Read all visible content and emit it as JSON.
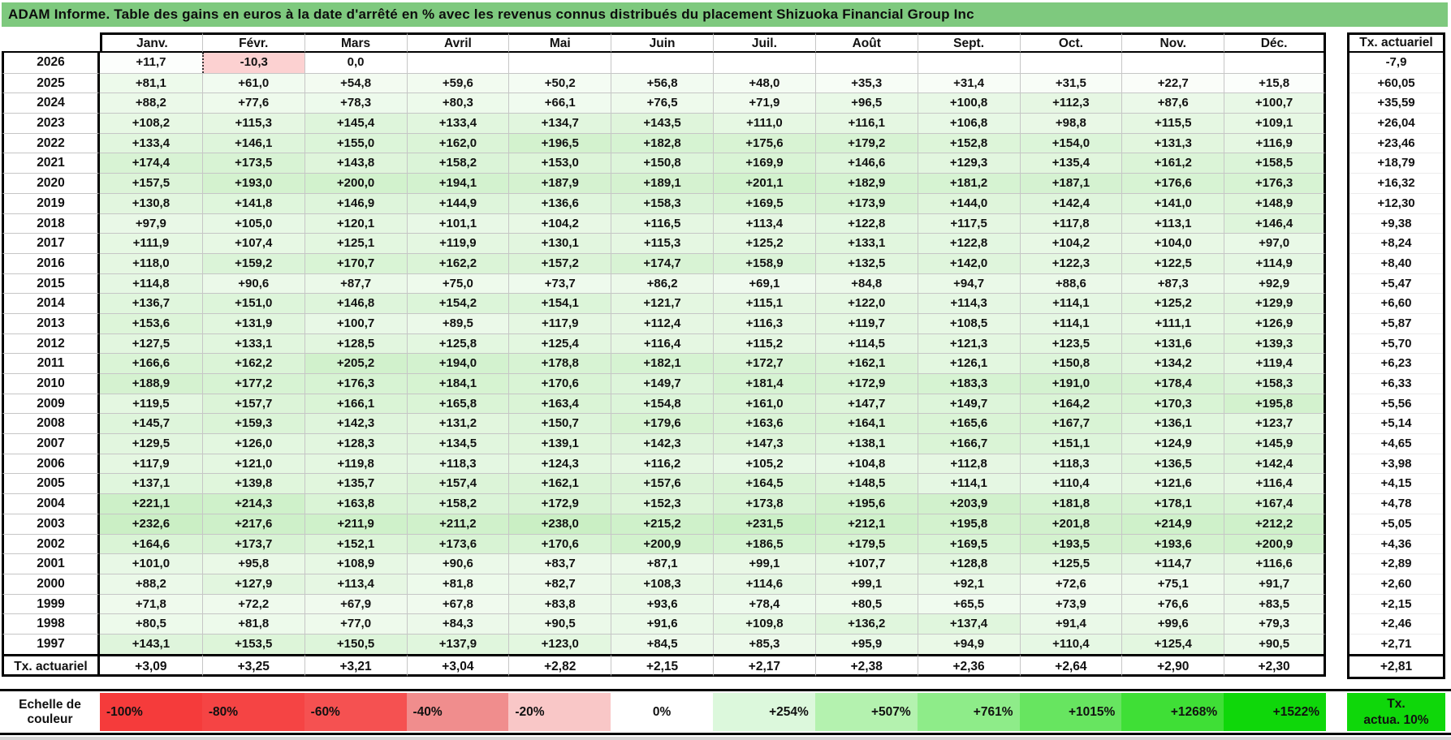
{
  "title": "ADAM Informe. Table des gains en euros à la date d'arrêté en % avec les revenus connus distribués du placement Shizuoka Financial Group Inc",
  "table": {
    "month_headers": [
      "Janv.",
      "Févr.",
      "Mars",
      "Avril",
      "Mai",
      "Juin",
      "Juil.",
      "Août",
      "Sept.",
      "Oct.",
      "Nov.",
      "Déc."
    ],
    "tx_header": "Tx. actuariel",
    "rows": [
      {
        "year": "2026",
        "values": [
          "+11,7",
          "-10,3",
          "0,0",
          "",
          "",
          "",
          "",
          "",
          "",
          "",
          "",
          ""
        ],
        "tx": "-7,9"
      },
      {
        "year": "2025",
        "values": [
          "+81,1",
          "+61,0",
          "+54,8",
          "+59,6",
          "+50,2",
          "+56,8",
          "+48,0",
          "+35,3",
          "+31,4",
          "+31,5",
          "+22,7",
          "+15,8"
        ],
        "tx": "+60,05"
      },
      {
        "year": "2024",
        "values": [
          "+88,2",
          "+77,6",
          "+78,3",
          "+80,3",
          "+66,1",
          "+76,5",
          "+71,9",
          "+96,5",
          "+100,8",
          "+112,3",
          "+87,6",
          "+100,7"
        ],
        "tx": "+35,59"
      },
      {
        "year": "2023",
        "values": [
          "+108,2",
          "+115,3",
          "+145,4",
          "+133,4",
          "+134,7",
          "+143,5",
          "+111,0",
          "+116,1",
          "+106,8",
          "+98,8",
          "+115,5",
          "+109,1"
        ],
        "tx": "+26,04"
      },
      {
        "year": "2022",
        "values": [
          "+133,4",
          "+146,1",
          "+155,0",
          "+162,0",
          "+196,5",
          "+182,8",
          "+175,6",
          "+179,2",
          "+152,8",
          "+154,0",
          "+131,3",
          "+116,9"
        ],
        "tx": "+23,46"
      },
      {
        "year": "2021",
        "values": [
          "+174,4",
          "+173,5",
          "+143,8",
          "+158,2",
          "+153,0",
          "+150,8",
          "+169,9",
          "+146,6",
          "+129,3",
          "+135,4",
          "+161,2",
          "+158,5"
        ],
        "tx": "+18,79"
      },
      {
        "year": "2020",
        "values": [
          "+157,5",
          "+193,0",
          "+200,0",
          "+194,1",
          "+187,9",
          "+189,1",
          "+201,1",
          "+182,9",
          "+181,2",
          "+187,1",
          "+176,6",
          "+176,3"
        ],
        "tx": "+16,32"
      },
      {
        "year": "2019",
        "values": [
          "+130,8",
          "+141,8",
          "+146,9",
          "+144,9",
          "+136,6",
          "+158,3",
          "+169,5",
          "+173,9",
          "+144,0",
          "+142,4",
          "+141,0",
          "+148,9"
        ],
        "tx": "+12,30"
      },
      {
        "year": "2018",
        "values": [
          "+97,9",
          "+105,0",
          "+120,1",
          "+101,1",
          "+104,2",
          "+116,5",
          "+113,4",
          "+122,8",
          "+117,5",
          "+117,8",
          "+113,1",
          "+146,4"
        ],
        "tx": "+9,38"
      },
      {
        "year": "2017",
        "values": [
          "+111,9",
          "+107,4",
          "+125,1",
          "+119,9",
          "+130,1",
          "+115,3",
          "+125,2",
          "+133,1",
          "+122,8",
          "+104,2",
          "+104,0",
          "+97,0"
        ],
        "tx": "+8,24"
      },
      {
        "year": "2016",
        "values": [
          "+118,0",
          "+159,2",
          "+170,7",
          "+162,2",
          "+157,2",
          "+174,7",
          "+158,9",
          "+132,5",
          "+142,0",
          "+122,3",
          "+122,5",
          "+114,9"
        ],
        "tx": "+8,40"
      },
      {
        "year": "2015",
        "values": [
          "+114,8",
          "+90,6",
          "+87,7",
          "+75,0",
          "+73,7",
          "+86,2",
          "+69,1",
          "+84,8",
          "+94,7",
          "+88,6",
          "+87,3",
          "+92,9"
        ],
        "tx": "+5,47"
      },
      {
        "year": "2014",
        "values": [
          "+136,7",
          "+151,0",
          "+146,8",
          "+154,2",
          "+154,1",
          "+121,7",
          "+115,1",
          "+122,0",
          "+114,3",
          "+114,1",
          "+125,2",
          "+129,9"
        ],
        "tx": "+6,60"
      },
      {
        "year": "2013",
        "values": [
          "+153,6",
          "+131,9",
          "+100,7",
          "+89,5",
          "+117,9",
          "+112,4",
          "+116,3",
          "+119,7",
          "+108,5",
          "+114,1",
          "+111,1",
          "+126,9"
        ],
        "tx": "+5,87"
      },
      {
        "year": "2012",
        "values": [
          "+127,5",
          "+133,1",
          "+128,5",
          "+125,8",
          "+125,4",
          "+116,4",
          "+115,2",
          "+114,5",
          "+121,3",
          "+123,5",
          "+131,6",
          "+139,3"
        ],
        "tx": "+5,70"
      },
      {
        "year": "2011",
        "values": [
          "+166,6",
          "+162,2",
          "+205,2",
          "+194,0",
          "+178,8",
          "+182,1",
          "+172,7",
          "+162,1",
          "+126,1",
          "+150,8",
          "+134,2",
          "+119,4"
        ],
        "tx": "+6,23"
      },
      {
        "year": "2010",
        "values": [
          "+188,9",
          "+177,2",
          "+176,3",
          "+184,1",
          "+170,6",
          "+149,7",
          "+181,4",
          "+172,9",
          "+183,3",
          "+191,0",
          "+178,4",
          "+158,3"
        ],
        "tx": "+6,33"
      },
      {
        "year": "2009",
        "values": [
          "+119,5",
          "+157,7",
          "+166,1",
          "+165,8",
          "+163,4",
          "+154,8",
          "+161,0",
          "+147,7",
          "+149,7",
          "+164,2",
          "+170,3",
          "+195,8"
        ],
        "tx": "+5,56"
      },
      {
        "year": "2008",
        "values": [
          "+145,7",
          "+159,3",
          "+142,3",
          "+131,2",
          "+150,7",
          "+179,6",
          "+163,6",
          "+164,1",
          "+165,6",
          "+167,7",
          "+136,1",
          "+123,7"
        ],
        "tx": "+5,14"
      },
      {
        "year": "2007",
        "values": [
          "+129,5",
          "+126,0",
          "+128,3",
          "+134,5",
          "+139,1",
          "+142,3",
          "+147,3",
          "+138,1",
          "+166,7",
          "+151,1",
          "+124,9",
          "+145,9"
        ],
        "tx": "+4,65"
      },
      {
        "year": "2006",
        "values": [
          "+117,9",
          "+121,0",
          "+119,8",
          "+118,3",
          "+124,3",
          "+116,2",
          "+105,2",
          "+104,8",
          "+112,8",
          "+118,3",
          "+136,5",
          "+142,4"
        ],
        "tx": "+3,98"
      },
      {
        "year": "2005",
        "values": [
          "+137,1",
          "+139,8",
          "+135,7",
          "+157,4",
          "+162,1",
          "+157,6",
          "+164,5",
          "+148,5",
          "+114,1",
          "+110,4",
          "+121,6",
          "+116,4"
        ],
        "tx": "+4,15"
      },
      {
        "year": "2004",
        "values": [
          "+221,1",
          "+214,3",
          "+163,8",
          "+158,2",
          "+172,9",
          "+152,3",
          "+173,8",
          "+195,6",
          "+203,9",
          "+181,8",
          "+178,1",
          "+167,4"
        ],
        "tx": "+4,78"
      },
      {
        "year": "2003",
        "values": [
          "+232,6",
          "+217,6",
          "+211,9",
          "+211,2",
          "+238,0",
          "+215,2",
          "+231,5",
          "+212,1",
          "+195,8",
          "+201,8",
          "+214,9",
          "+212,2"
        ],
        "tx": "+5,05"
      },
      {
        "year": "2002",
        "values": [
          "+164,6",
          "+173,7",
          "+152,1",
          "+173,6",
          "+170,6",
          "+200,9",
          "+186,5",
          "+179,5",
          "+169,5",
          "+193,5",
          "+193,6",
          "+200,9"
        ],
        "tx": "+4,36"
      },
      {
        "year": "2001",
        "values": [
          "+101,0",
          "+95,8",
          "+108,9",
          "+90,6",
          "+83,7",
          "+87,1",
          "+99,1",
          "+107,7",
          "+128,8",
          "+125,5",
          "+114,7",
          "+116,6"
        ],
        "tx": "+2,89"
      },
      {
        "year": "2000",
        "values": [
          "+88,2",
          "+127,9",
          "+113,4",
          "+81,8",
          "+82,7",
          "+108,3",
          "+114,6",
          "+99,1",
          "+92,1",
          "+72,6",
          "+75,1",
          "+91,7"
        ],
        "tx": "+2,60"
      },
      {
        "year": "1999",
        "values": [
          "+71,8",
          "+72,2",
          "+67,9",
          "+67,8",
          "+83,8",
          "+93,6",
          "+78,4",
          "+80,5",
          "+65,5",
          "+73,9",
          "+76,6",
          "+83,5"
        ],
        "tx": "+2,15"
      },
      {
        "year": "1998",
        "values": [
          "+80,5",
          "+81,8",
          "+77,0",
          "+84,3",
          "+90,5",
          "+91,6",
          "+109,8",
          "+136,2",
          "+137,4",
          "+91,4",
          "+99,6",
          "+79,3"
        ],
        "tx": "+2,46"
      },
      {
        "year": "1997",
        "values": [
          "+143,1",
          "+153,5",
          "+150,5",
          "+137,9",
          "+123,0",
          "+84,5",
          "+85,3",
          "+95,9",
          "+94,9",
          "+110,4",
          "+125,4",
          "+90,5"
        ],
        "tx": "+2,71"
      }
    ],
    "footer": {
      "label": "Tx. actuariel",
      "values": [
        "+3,09",
        "+3,25",
        "+3,21",
        "+3,04",
        "+2,82",
        "+2,15",
        "+2,17",
        "+2,38",
        "+2,36",
        "+2,64",
        "+2,90",
        "+2,30"
      ],
      "tx": "+2,81"
    },
    "selected_cell": {
      "year": "2026",
      "month_index": 1
    }
  },
  "color_scale": {
    "label": "Echelle de couleur",
    "stops": [
      {
        "label": "-100%",
        "color": "#f53b3b"
      },
      {
        "label": "-80%",
        "color": "#f54444"
      },
      {
        "label": "-60%",
        "color": "#f55151"
      },
      {
        "label": "-40%",
        "color": "#f08d8d"
      },
      {
        "label": "-20%",
        "color": "#f9c7c7"
      },
      {
        "label": "0%",
        "color": "#ffffff"
      },
      {
        "label": "+254%",
        "color": "#dcf8dc"
      },
      {
        "label": "+507%",
        "color": "#b4f2af"
      },
      {
        "label": "+761%",
        "color": "#8eec89"
      },
      {
        "label": "+1015%",
        "color": "#67e560"
      },
      {
        "label": "+1268%",
        "color": "#3fdf36"
      },
      {
        "label": "+1522%",
        "color": "#0fd70a"
      }
    ],
    "tx_block": {
      "line1": "Tx.",
      "line2": "actua. 10%",
      "color": "#0fd70a"
    }
  },
  "colors": {
    "title_bg": "#7ec97e",
    "grid_line": "#c6c6c6",
    "negative_strong": "#f43e3e",
    "positive_strong": "#c6eec0",
    "cell_white": "#ffffff"
  }
}
